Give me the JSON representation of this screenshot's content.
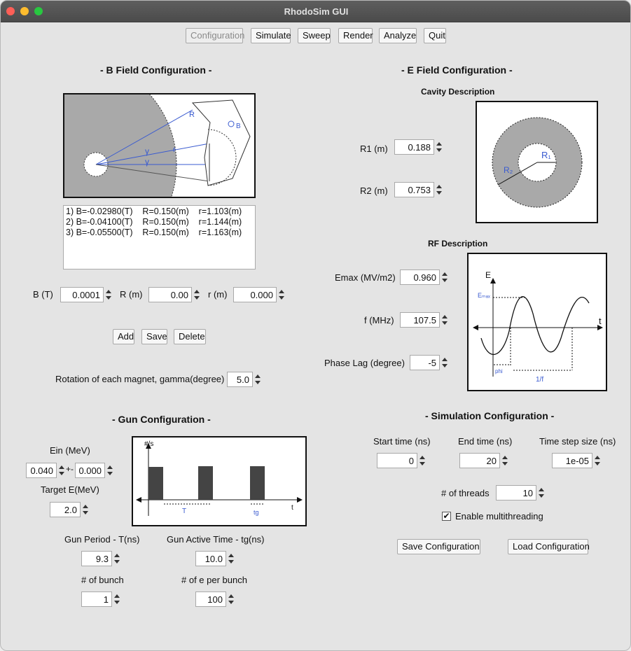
{
  "window": {
    "title": "RhodoSim GUI"
  },
  "toolbar": {
    "configuration": "Configuration",
    "simulate": "Simulate",
    "sweep": "Sweep",
    "render": "Render",
    "analyze": "Analyze",
    "quit": "Quit"
  },
  "bfield": {
    "title": "- B Field Configuration -",
    "list": [
      "1) B=-0.02980(T)    R=0.150(m)    r=1.103(m)",
      "2) B=-0.04100(T)    R=0.150(m)    r=1.144(m)",
      "3) B=-0.05500(T)    R=0.150(m)    r=1.163(m)"
    ],
    "b_label": "B (T)",
    "b_value": "0.0001",
    "R_label": "R (m)",
    "R_value": "0.00",
    "r_label": "r (m)",
    "r_value": "0.000",
    "add": "Add",
    "save": "Save",
    "delete": "Delete",
    "rotation_label": "Rotation of each magnet, gamma(degree)",
    "rotation_value": "5.0",
    "diagram": {
      "R": "R",
      "r": "r",
      "gamma": "γ",
      "B": "B"
    }
  },
  "efield": {
    "title": "- E Field Configuration -",
    "cavity_title": "Cavity Description",
    "r1_label": "R1 (m)",
    "r1_value": "0.188",
    "r2_label": "R2 (m)",
    "r2_value": "0.753",
    "cavity_diagram": {
      "R1": "R₁",
      "R2": "R₂"
    },
    "rf_title": "RF Description",
    "emax_label": "Emax (MV/m2)",
    "emax_value": "0.960",
    "f_label": "f (MHz)",
    "f_value": "107.5",
    "phase_label": "Phase Lag (degree)",
    "phase_value": "-5",
    "rf_diagram": {
      "E": "E",
      "t": "t",
      "Emax": "Eₘₐₓ",
      "phi": "phi",
      "period": "1/f"
    }
  },
  "gun": {
    "title": "- Gun Configuration -",
    "ein_label": "Ein (MeV)",
    "ein_value": "0.040",
    "pm": "+-",
    "ein_spread": "0.000",
    "target_label": "Target E(MeV)",
    "target_value": "2.0",
    "period_label": "Gun Period - T(ns)",
    "period_value": "9.3",
    "active_label": "Gun Active Time - tg(ns)",
    "active_value": "10.0",
    "bunch_label": "# of bunch",
    "bunch_value": "1",
    "epb_label": "# of e per bunch",
    "epb_value": "100",
    "diagram": {
      "y": "#/s",
      "x": "t",
      "T": "T",
      "tg": "tg"
    }
  },
  "sim": {
    "title": "- Simulation Configuration -",
    "start_label": "Start time (ns)",
    "start_value": "0",
    "end_label": "End time (ns)",
    "end_value": "20",
    "step_label": "Time step size (ns)",
    "step_value": "1e-05",
    "threads_label": "# of threads",
    "threads_value": "10",
    "multi_label": "Enable multithreading",
    "multi_checked": "✔",
    "save_cfg": "Save Configuration",
    "load_cfg": "Load Configuration"
  }
}
